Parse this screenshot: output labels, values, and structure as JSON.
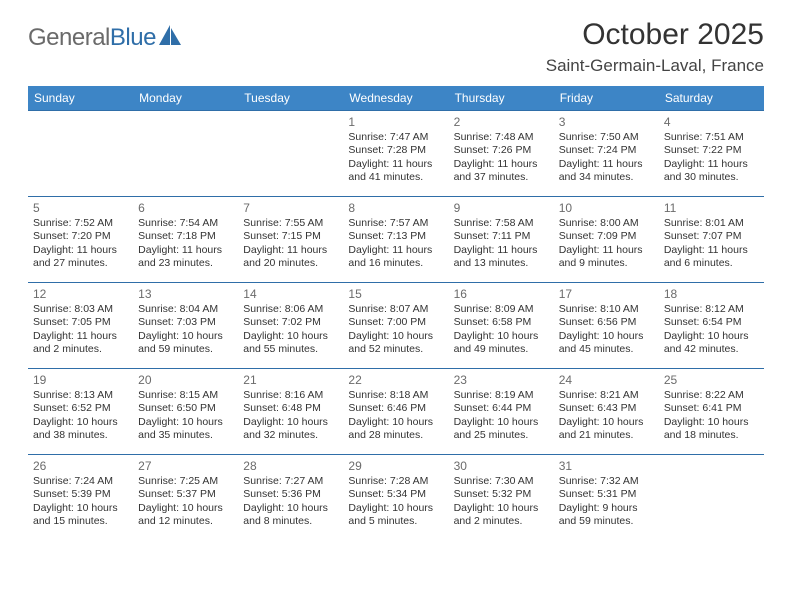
{
  "brand": {
    "part1": "General",
    "part2": "Blue"
  },
  "title": "October 2025",
  "location": "Saint-Germain-Laval, France",
  "header_bg": "#3d85c6",
  "border_color": "#2f6ea8",
  "dow": [
    "Sunday",
    "Monday",
    "Tuesday",
    "Wednesday",
    "Thursday",
    "Friday",
    "Saturday"
  ],
  "weeks": [
    [
      null,
      null,
      null,
      {
        "n": "1",
        "rise": "7:47 AM",
        "set": "7:28 PM",
        "dl": "11 hours and 41 minutes."
      },
      {
        "n": "2",
        "rise": "7:48 AM",
        "set": "7:26 PM",
        "dl": "11 hours and 37 minutes."
      },
      {
        "n": "3",
        "rise": "7:50 AM",
        "set": "7:24 PM",
        "dl": "11 hours and 34 minutes."
      },
      {
        "n": "4",
        "rise": "7:51 AM",
        "set": "7:22 PM",
        "dl": "11 hours and 30 minutes."
      }
    ],
    [
      {
        "n": "5",
        "rise": "7:52 AM",
        "set": "7:20 PM",
        "dl": "11 hours and 27 minutes."
      },
      {
        "n": "6",
        "rise": "7:54 AM",
        "set": "7:18 PM",
        "dl": "11 hours and 23 minutes."
      },
      {
        "n": "7",
        "rise": "7:55 AM",
        "set": "7:15 PM",
        "dl": "11 hours and 20 minutes."
      },
      {
        "n": "8",
        "rise": "7:57 AM",
        "set": "7:13 PM",
        "dl": "11 hours and 16 minutes."
      },
      {
        "n": "9",
        "rise": "7:58 AM",
        "set": "7:11 PM",
        "dl": "11 hours and 13 minutes."
      },
      {
        "n": "10",
        "rise": "8:00 AM",
        "set": "7:09 PM",
        "dl": "11 hours and 9 minutes."
      },
      {
        "n": "11",
        "rise": "8:01 AM",
        "set": "7:07 PM",
        "dl": "11 hours and 6 minutes."
      }
    ],
    [
      {
        "n": "12",
        "rise": "8:03 AM",
        "set": "7:05 PM",
        "dl": "11 hours and 2 minutes."
      },
      {
        "n": "13",
        "rise": "8:04 AM",
        "set": "7:03 PM",
        "dl": "10 hours and 59 minutes."
      },
      {
        "n": "14",
        "rise": "8:06 AM",
        "set": "7:02 PM",
        "dl": "10 hours and 55 minutes."
      },
      {
        "n": "15",
        "rise": "8:07 AM",
        "set": "7:00 PM",
        "dl": "10 hours and 52 minutes."
      },
      {
        "n": "16",
        "rise": "8:09 AM",
        "set": "6:58 PM",
        "dl": "10 hours and 49 minutes."
      },
      {
        "n": "17",
        "rise": "8:10 AM",
        "set": "6:56 PM",
        "dl": "10 hours and 45 minutes."
      },
      {
        "n": "18",
        "rise": "8:12 AM",
        "set": "6:54 PM",
        "dl": "10 hours and 42 minutes."
      }
    ],
    [
      {
        "n": "19",
        "rise": "8:13 AM",
        "set": "6:52 PM",
        "dl": "10 hours and 38 minutes."
      },
      {
        "n": "20",
        "rise": "8:15 AM",
        "set": "6:50 PM",
        "dl": "10 hours and 35 minutes."
      },
      {
        "n": "21",
        "rise": "8:16 AM",
        "set": "6:48 PM",
        "dl": "10 hours and 32 minutes."
      },
      {
        "n": "22",
        "rise": "8:18 AM",
        "set": "6:46 PM",
        "dl": "10 hours and 28 minutes."
      },
      {
        "n": "23",
        "rise": "8:19 AM",
        "set": "6:44 PM",
        "dl": "10 hours and 25 minutes."
      },
      {
        "n": "24",
        "rise": "8:21 AM",
        "set": "6:43 PM",
        "dl": "10 hours and 21 minutes."
      },
      {
        "n": "25",
        "rise": "8:22 AM",
        "set": "6:41 PM",
        "dl": "10 hours and 18 minutes."
      }
    ],
    [
      {
        "n": "26",
        "rise": "7:24 AM",
        "set": "5:39 PM",
        "dl": "10 hours and 15 minutes."
      },
      {
        "n": "27",
        "rise": "7:25 AM",
        "set": "5:37 PM",
        "dl": "10 hours and 12 minutes."
      },
      {
        "n": "28",
        "rise": "7:27 AM",
        "set": "5:36 PM",
        "dl": "10 hours and 8 minutes."
      },
      {
        "n": "29",
        "rise": "7:28 AM",
        "set": "5:34 PM",
        "dl": "10 hours and 5 minutes."
      },
      {
        "n": "30",
        "rise": "7:30 AM",
        "set": "5:32 PM",
        "dl": "10 hours and 2 minutes."
      },
      {
        "n": "31",
        "rise": "7:32 AM",
        "set": "5:31 PM",
        "dl": "9 hours and 59 minutes."
      },
      null
    ]
  ],
  "labels": {
    "sunrise": "Sunrise:",
    "sunset": "Sunset:",
    "daylight": "Daylight:"
  }
}
